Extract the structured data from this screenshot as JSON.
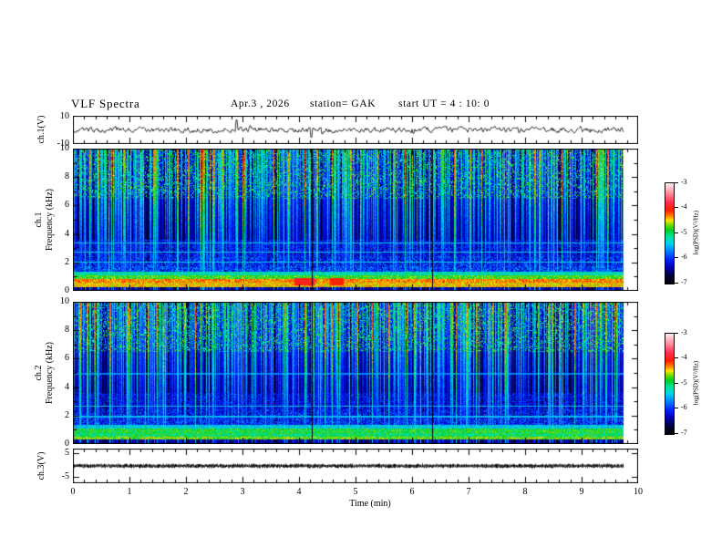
{
  "header": {
    "title": "VLF Spectra",
    "date": "Apr.3 , 2026",
    "station": "station= GAK",
    "start_ut": "start UT =  4 : 10: 0"
  },
  "panels": {
    "ch1_wave": {
      "label": "ch.1(V)",
      "ymax": "10",
      "ymin": "-10"
    },
    "spec1": {
      "label_channel": "ch.1",
      "label_axis": "Frequency (kHz)",
      "yticks": [
        "10",
        "8",
        "6",
        "4",
        "2",
        "0"
      ]
    },
    "spec2": {
      "label_channel": "ch.2",
      "label_axis": "Frequency (kHz)",
      "yticks": [
        "10",
        "8",
        "6",
        "4",
        "2",
        "0"
      ]
    },
    "ch3_wave": {
      "label": "ch.3(V)",
      "ymax": "5",
      "ymin": "-5"
    }
  },
  "xaxis": {
    "label": "Time (min)",
    "ticks": [
      "0",
      "1",
      "2",
      "3",
      "4",
      "5",
      "6",
      "7",
      "8",
      "9",
      "10"
    ]
  },
  "colorbar": {
    "label": "log(PSD)(V²/Hz)",
    "ticks": [
      "-3",
      "-4",
      "-5",
      "-6",
      "-7"
    ],
    "zlim": [
      -7,
      -3
    ],
    "gradient_stops": [
      {
        "t": 0.0,
        "c": "#000000"
      },
      {
        "t": 0.08,
        "c": "#00003a"
      },
      {
        "t": 0.16,
        "c": "#0000b0"
      },
      {
        "t": 0.24,
        "c": "#0022ff"
      },
      {
        "t": 0.33,
        "c": "#0088ff"
      },
      {
        "t": 0.4,
        "c": "#00d4ee"
      },
      {
        "t": 0.47,
        "c": "#00e49a"
      },
      {
        "t": 0.53,
        "c": "#00cc2a"
      },
      {
        "t": 0.59,
        "c": "#7fdc00"
      },
      {
        "t": 0.63,
        "c": "#ffe400"
      },
      {
        "t": 0.67,
        "c": "#ff8800"
      },
      {
        "t": 0.73,
        "c": "#ff1e00"
      },
      {
        "t": 0.81,
        "c": "#ff2e50"
      },
      {
        "t": 0.9,
        "c": "#ff8fa0"
      },
      {
        "t": 1.0,
        "c": "#ffeef2"
      }
    ]
  },
  "chart_data": [
    {
      "type": "line",
      "name": "ch.1 (V) waveform",
      "xlim": [
        0,
        10
      ],
      "ylim": [
        -10,
        10
      ],
      "baseline_V": 0,
      "noise_amplitude_V": 1.5,
      "data_end_min": 9.87,
      "spikes": [
        {
          "t_min": 2.94,
          "V": 7.5
        },
        {
          "t_min": 3.18,
          "V": 3.0
        },
        {
          "t_min": 4.27,
          "V": -5.5
        },
        {
          "t_min": 4.47,
          "V": -3.0
        },
        {
          "t_min": 6.1,
          "V": -2.5
        },
        {
          "t_min": 8.0,
          "V": -2.0
        }
      ]
    },
    {
      "type": "heatmap",
      "name": "ch.1 VLF spectrogram",
      "xlabel": "Time (min)",
      "ylabel": "Frequency (kHz)",
      "zlabel": "log(PSD)(V²/Hz)",
      "xlim": [
        0,
        10
      ],
      "ylim": [
        0,
        10
      ],
      "zlim": [
        -7,
        -3
      ],
      "data_end_min": 9.87,
      "bands": [
        {
          "f": [
            0.0,
            0.1
          ],
          "level": -4.15,
          "jitter": 0.12
        },
        {
          "f": [
            0.1,
            0.32
          ],
          "level": -6.7,
          "jitter": 0.45
        },
        {
          "f": [
            0.32,
            0.6
          ],
          "level": -4.45,
          "jitter": 0.25
        },
        {
          "f": [
            0.6,
            0.85
          ],
          "level": -4.3,
          "jitter": 0.3
        },
        {
          "f": [
            0.85,
            1.1
          ],
          "level": -4.8,
          "jitter": 0.3
        },
        {
          "f": [
            1.1,
            1.35
          ],
          "level": -5.2,
          "jitter": 0.3
        },
        {
          "f": [
            1.35,
            1.75
          ],
          "level": -6.0,
          "jitter": 0.5
        },
        {
          "f": [
            1.75,
            2.45
          ],
          "level": -6.2,
          "jitter": 0.6
        },
        {
          "f": [
            2.45,
            3.6
          ],
          "level": -6.35,
          "jitter": 0.6
        },
        {
          "f": [
            3.6,
            7.0
          ],
          "level": -6.85,
          "jitter": 0.25
        },
        {
          "f": [
            7.0,
            10.0
          ],
          "level": -6.8,
          "jitter": 0.3
        }
      ],
      "hlines": [
        {
          "f": 2.05,
          "level": -5.5
        },
        {
          "f": 2.75,
          "level": -5.55
        },
        {
          "f": 3.4,
          "level": -5.6
        }
      ],
      "hot_spots": [
        {
          "t": 4.15,
          "f": 0.68,
          "halfwidth_min": 0.18,
          "level": -3.9
        },
        {
          "t": 4.72,
          "f": 0.68,
          "halfwidth_min": 0.12,
          "level": -4.0
        }
      ],
      "dropouts": [
        4.28,
        6.44
      ]
    },
    {
      "type": "heatmap",
      "name": "ch.2 VLF spectrogram",
      "xlabel": "Time (min)",
      "ylabel": "Frequency (kHz)",
      "zlabel": "log(PSD)(V²/Hz)",
      "xlim": [
        0,
        10
      ],
      "ylim": [
        0,
        10
      ],
      "zlim": [
        -7,
        -3
      ],
      "data_end_min": 9.87,
      "bands": [
        {
          "f": [
            0.0,
            0.1
          ],
          "level": -4.15,
          "jitter": 0.12
        },
        {
          "f": [
            0.1,
            0.35
          ],
          "level": -6.8,
          "jitter": 0.4
        },
        {
          "f": [
            0.35,
            0.55
          ],
          "level": -4.7,
          "jitter": 0.3
        },
        {
          "f": [
            0.55,
            0.8
          ],
          "level": -5.0,
          "jitter": 0.35
        },
        {
          "f": [
            0.8,
            1.1
          ],
          "level": -4.9,
          "jitter": 0.3
        },
        {
          "f": [
            1.1,
            1.4
          ],
          "level": -5.4,
          "jitter": 0.3
        },
        {
          "f": [
            1.4,
            1.8
          ],
          "level": -6.1,
          "jitter": 0.5
        },
        {
          "f": [
            1.8,
            2.5
          ],
          "level": -6.25,
          "jitter": 0.6
        },
        {
          "f": [
            2.5,
            3.6
          ],
          "level": -6.4,
          "jitter": 0.6
        },
        {
          "f": [
            3.6,
            7.0
          ],
          "level": -6.85,
          "jitter": 0.25
        },
        {
          "f": [
            7.0,
            10.0
          ],
          "level": -6.8,
          "jitter": 0.3
        }
      ],
      "hlines": [
        {
          "f": 1.95,
          "level": -5.6
        },
        {
          "f": 2.7,
          "level": -5.6
        },
        {
          "f": 4.95,
          "level": -5.8
        }
      ],
      "hot_spots": [],
      "dropouts": [
        4.28,
        6.44
      ]
    },
    {
      "type": "line",
      "name": "ch.3 (V) waveform",
      "xlim": [
        0,
        10
      ],
      "yticks": [
        5,
        -5
      ],
      "ylim_est": [
        -7.5,
        7.5
      ],
      "value_V": 0,
      "trace_thickness_V": 0.8,
      "data_end_min": 9.87
    }
  ]
}
